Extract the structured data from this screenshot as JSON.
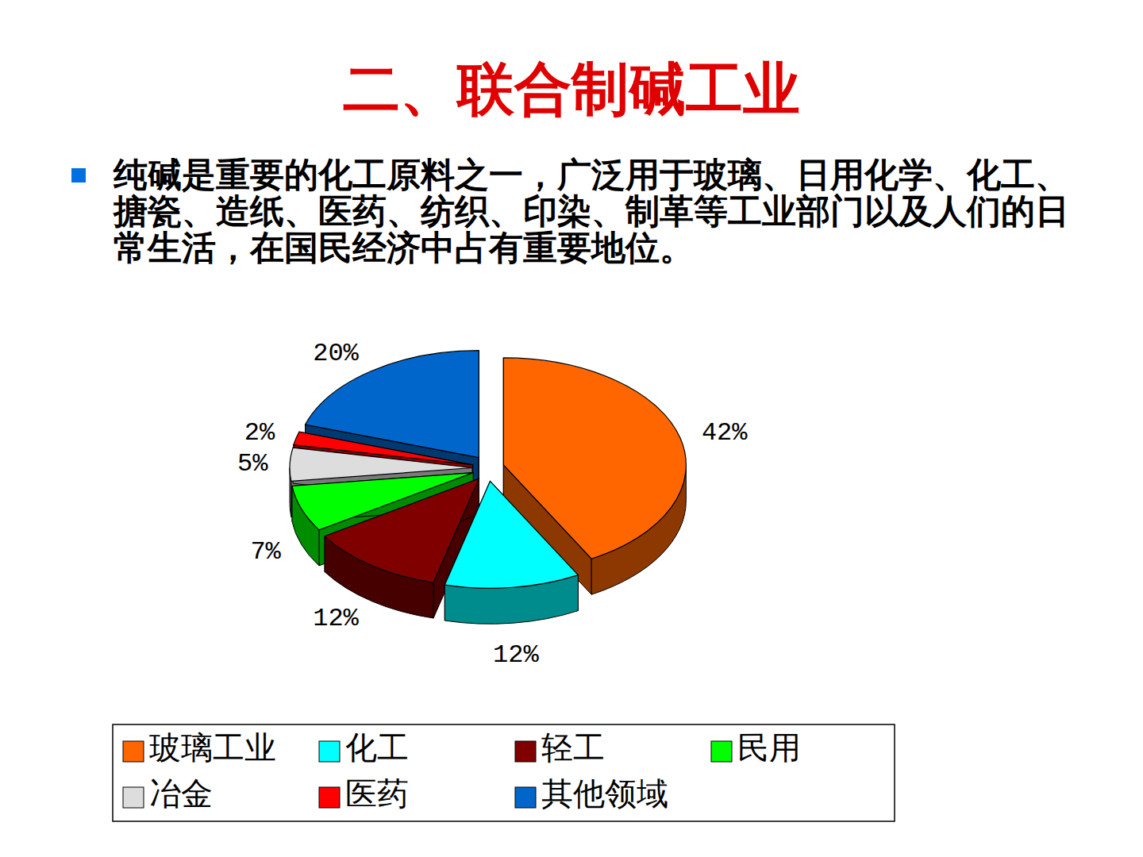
{
  "slide": {
    "title": "二、联合制碱工业",
    "text": "纯碱是重要的化工原料之一，广泛用于玻璃、日用化学、化工、搪瓷、造纸、医药、纺织、印染、制革等工业部门以及人们的日常生活，在国民经济中占有重要地位。"
  },
  "chart_data": {
    "type": "pie",
    "categories": [
      "玻璃工业",
      "化工",
      "轻工",
      "民用",
      "冶金",
      "医药",
      "其他领域"
    ],
    "values": [
      42,
      12,
      12,
      7,
      5,
      2,
      20
    ],
    "value_labels": [
      "42%",
      "12%",
      "12%",
      "7%",
      "5%",
      "2%",
      "20%"
    ],
    "colors": [
      "#ff6600",
      "#00ffff",
      "#800000",
      "#00ff00",
      "#dddddd",
      "#ff0000",
      "#0066cc"
    ],
    "data_labels": true,
    "legend": "bottom"
  }
}
